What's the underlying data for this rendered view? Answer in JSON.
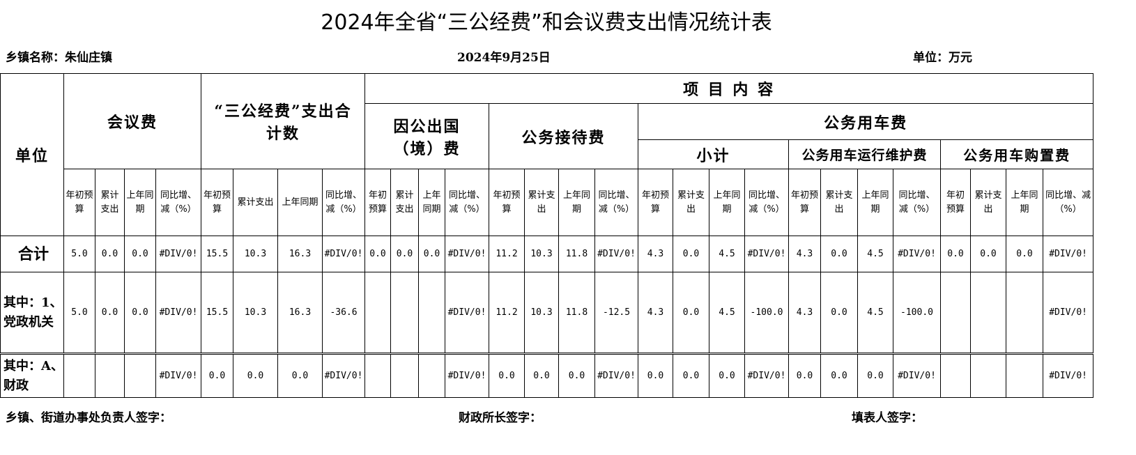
{
  "title": "2024年全省“三公经费”和会议费支出情况统计表",
  "info": {
    "town": "乡镇名称：朱仙庄镇",
    "date": "2024年9月25日",
    "unit": "单位：万元"
  },
  "header": {
    "unit_col": "单位",
    "meeting": "会议费",
    "three_public": "“三公经费”支出合计数",
    "project_content": "项 目 内 容",
    "abroad": "因公出国（境）费",
    "reception": "公务接待费",
    "vehicle": "公务用车费",
    "subtotal": "小计",
    "vehicle_maint": "公务用车运行维护费",
    "vehicle_purchase": "公务用车购置费",
    "sub_labels": [
      "年初预算",
      "累计支出",
      "上年同期",
      "同比增、减（%）",
      "年初预算",
      "累计支出",
      "上年同期",
      "同比增、减（%）",
      "年初预算",
      "累计支出",
      "上年同期",
      "同比增、减（%）",
      "年初预算",
      "累计支出",
      "上年同期",
      "同比增、减（%）",
      "年初预算",
      "累计支出",
      "上年同期",
      "同比增、减（%）",
      "年初预算",
      "累计支出",
      "上年同期",
      "同比增、减（%）",
      "年初预算",
      "累计支出",
      "上年同期",
      "同比增、减（%）"
    ]
  },
  "rows": [
    {
      "label": "合计",
      "values": [
        "5.0",
        "0.0",
        "0.0",
        "#DIV/0!",
        "15.5",
        "10.3",
        "16.3",
        "#DIV/0!",
        "0.0",
        "0.0",
        "0.0",
        "#DIV/0!",
        "11.2",
        "10.3",
        "11.8",
        "#DIV/0!",
        "4.3",
        "0.0",
        "4.5",
        "#DIV/0!",
        "4.3",
        "0.0",
        "4.5",
        "#DIV/0!",
        "0.0",
        "0.0",
        "0.0",
        "#DIV/0!"
      ]
    },
    {
      "label": "其中：1、党政机关",
      "values": [
        "5.0",
        "0.0",
        "0.0",
        "#DIV/0!",
        "15.5",
        "10.3",
        "16.3",
        "-36.6",
        "",
        "",
        "",
        "#DIV/0!",
        "11.2",
        "10.3",
        "11.8",
        "-12.5",
        "4.3",
        "0.0",
        "4.5",
        "-100.0",
        "4.3",
        "0.0",
        "4.5",
        "-100.0",
        "",
        "",
        "",
        "#DIV/0!"
      ]
    },
    {
      "label": "其中：A、财政",
      "values": [
        "",
        "",
        "",
        "#DIV/0!",
        "0.0",
        "0.0",
        "0.0",
        "#DIV/0!",
        "",
        "",
        "",
        "#DIV/0!",
        "0.0",
        "0.0",
        "0.0",
        "#DIV/0!",
        "0.0",
        "0.0",
        "0.0",
        "#DIV/0!",
        "0.0",
        "0.0",
        "0.0",
        "#DIV/0!",
        "",
        "",
        "",
        "#DIV/0!"
      ]
    }
  ],
  "footer": {
    "leader": "乡镇、街道办事处负责人签字：",
    "finance": "财政所长签字：",
    "filler": "填表人签字："
  }
}
